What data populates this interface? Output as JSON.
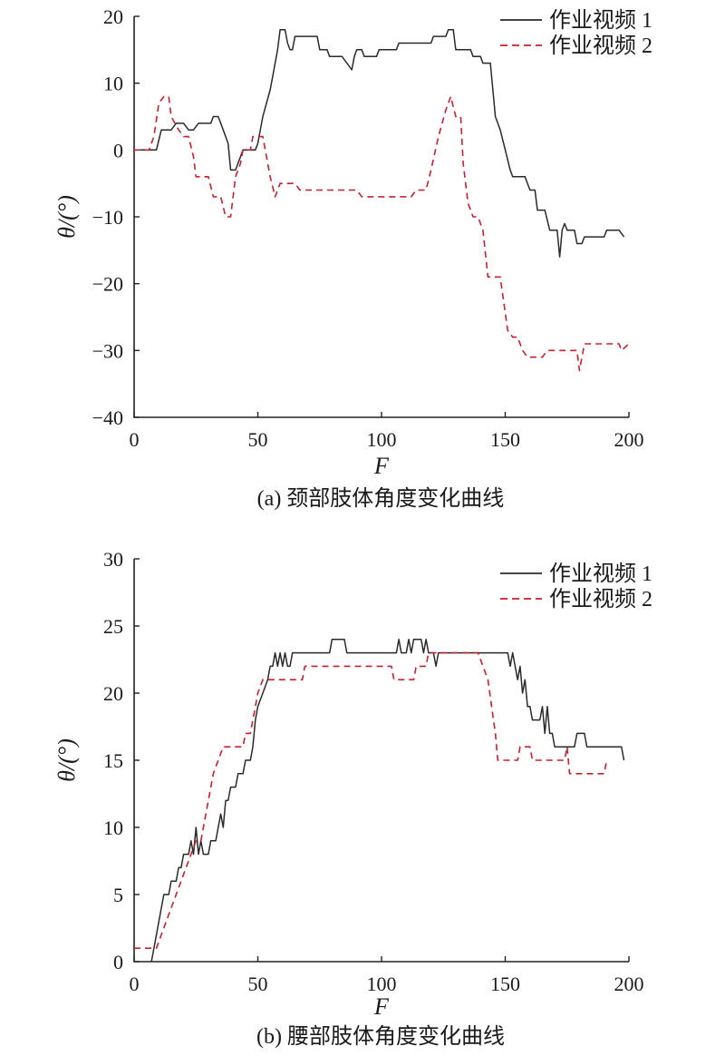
{
  "chart_data": [
    {
      "type": "line",
      "title": "",
      "caption": "(a) 颈部肢体角度变化曲线",
      "xlabel": "F",
      "ylabel": "θ/(°)",
      "xlim": [
        0,
        200
      ],
      "ylim": [
        -40,
        20
      ],
      "xticks": [
        "0",
        "50",
        "100",
        "150",
        "200"
      ],
      "yticks": [
        "20",
        "10",
        "0",
        "−10",
        "−20",
        "−30",
        "−40"
      ],
      "grid": false,
      "legend_position": "top-right",
      "series": [
        {
          "name": "作业视频 1",
          "color": "#2a2a2a",
          "dash": "solid",
          "points": [
            [
              0,
              0
            ],
            [
              9,
              0
            ],
            [
              11,
              3
            ],
            [
              15,
              3
            ],
            [
              17,
              4
            ],
            [
              20,
              4
            ],
            [
              22,
              3
            ],
            [
              24,
              3
            ],
            [
              26,
              4
            ],
            [
              31,
              4
            ],
            [
              32,
              5
            ],
            [
              34,
              5
            ],
            [
              36,
              3
            ],
            [
              38,
              1
            ],
            [
              39,
              -3
            ],
            [
              41,
              -3
            ],
            [
              43,
              -1
            ],
            [
              44,
              0
            ],
            [
              49,
              0
            ],
            [
              50,
              1
            ],
            [
              52,
              5
            ],
            [
              55,
              9
            ],
            [
              56,
              11
            ],
            [
              58,
              15
            ],
            [
              59,
              18
            ],
            [
              61,
              18
            ],
            [
              62,
              16
            ],
            [
              63,
              15
            ],
            [
              64,
              15
            ],
            [
              65,
              17
            ],
            [
              74,
              17
            ],
            [
              75,
              15
            ],
            [
              78,
              15
            ],
            [
              79,
              14
            ],
            [
              84,
              14
            ],
            [
              86,
              13
            ],
            [
              88,
              12
            ],
            [
              89,
              14
            ],
            [
              90,
              15
            ],
            [
              92,
              15
            ],
            [
              93,
              14
            ],
            [
              98,
              14
            ],
            [
              99,
              15
            ],
            [
              106,
              15
            ],
            [
              107,
              16
            ],
            [
              120,
              16
            ],
            [
              121,
              17
            ],
            [
              126,
              17
            ],
            [
              127,
              18
            ],
            [
              129,
              18
            ],
            [
              130,
              15
            ],
            [
              136,
              15
            ],
            [
              137,
              14
            ],
            [
              140,
              14
            ],
            [
              141,
              13
            ],
            [
              144,
              13
            ],
            [
              146,
              5
            ],
            [
              148,
              3
            ],
            [
              150,
              0
            ],
            [
              152,
              -3
            ],
            [
              153,
              -4
            ],
            [
              158,
              -4
            ],
            [
              160,
              -6
            ],
            [
              162,
              -6
            ],
            [
              163,
              -9
            ],
            [
              166,
              -9
            ],
            [
              168,
              -12
            ],
            [
              171,
              -12
            ],
            [
              172,
              -16
            ],
            [
              173,
              -12
            ],
            [
              174,
              -11
            ],
            [
              175,
              -12
            ],
            [
              178,
              -12
            ],
            [
              179,
              -14
            ],
            [
              181,
              -14
            ],
            [
              182,
              -13
            ],
            [
              190,
              -13
            ],
            [
              191,
              -12
            ],
            [
              196,
              -12
            ],
            [
              198,
              -13
            ]
          ]
        },
        {
          "name": "作业视频 2",
          "color": "#c8202e",
          "dash": "dashed",
          "points": [
            [
              0,
              0
            ],
            [
              6,
              0
            ],
            [
              8,
              2
            ],
            [
              10,
              7
            ],
            [
              12,
              8
            ],
            [
              14,
              8
            ],
            [
              15,
              5
            ],
            [
              18,
              3
            ],
            [
              20,
              2
            ],
            [
              22,
              2
            ],
            [
              24,
              -1
            ],
            [
              25,
              -4
            ],
            [
              30,
              -4
            ],
            [
              32,
              -7
            ],
            [
              35,
              -7
            ],
            [
              37,
              -10
            ],
            [
              39,
              -10
            ],
            [
              41,
              -4
            ],
            [
              43,
              -2
            ],
            [
              44,
              0
            ],
            [
              47,
              0
            ],
            [
              48,
              2
            ],
            [
              52,
              2
            ],
            [
              53,
              0
            ],
            [
              55,
              -4
            ],
            [
              57,
              -7
            ],
            [
              59,
              -5
            ],
            [
              65,
              -5
            ],
            [
              67,
              -6
            ],
            [
              90,
              -6
            ],
            [
              92,
              -7
            ],
            [
              112,
              -7
            ],
            [
              114,
              -6
            ],
            [
              118,
              -6
            ],
            [
              120,
              -3
            ],
            [
              123,
              2
            ],
            [
              126,
              6
            ],
            [
              128,
              8
            ],
            [
              130,
              5
            ],
            [
              132,
              5
            ],
            [
              133,
              -2
            ],
            [
              135,
              -8
            ],
            [
              137,
              -10
            ],
            [
              139,
              -10
            ],
            [
              141,
              -12
            ],
            [
              143,
              -19
            ],
            [
              148,
              -19
            ],
            [
              151,
              -27
            ],
            [
              153,
              -28
            ],
            [
              155,
              -28
            ],
            [
              157,
              -30
            ],
            [
              159,
              -31
            ],
            [
              165,
              -31
            ],
            [
              167,
              -30
            ],
            [
              179,
              -30
            ],
            [
              180,
              -33
            ],
            [
              182,
              -29
            ],
            [
              196,
              -29
            ],
            [
              197,
              -30
            ],
            [
              200,
              -29
            ]
          ]
        }
      ]
    },
    {
      "type": "line",
      "title": "",
      "caption": "(b) 腰部肢体角度变化曲线",
      "xlabel": "F",
      "ylabel": "θ/(°)",
      "xlim": [
        0,
        200
      ],
      "ylim": [
        0,
        30
      ],
      "xticks": [
        "0",
        "50",
        "100",
        "150",
        "200"
      ],
      "yticks": [
        "30",
        "25",
        "20",
        "15",
        "10",
        "5",
        "0"
      ],
      "grid": false,
      "legend_position": "top-right",
      "series": [
        {
          "name": "作业视频 1",
          "color": "#2a2a2a",
          "dash": "solid",
          "points": [
            [
              7,
              0
            ],
            [
              9,
              2
            ],
            [
              10,
              3
            ],
            [
              12,
              5
            ],
            [
              14,
              5
            ],
            [
              15,
              6
            ],
            [
              17,
              6
            ],
            [
              18,
              7
            ],
            [
              19,
              7
            ],
            [
              20,
              8
            ],
            [
              22,
              8
            ],
            [
              23,
              9
            ],
            [
              24,
              8
            ],
            [
              25,
              10
            ],
            [
              26,
              8
            ],
            [
              27,
              9
            ],
            [
              28,
              8
            ],
            [
              30,
              8
            ],
            [
              31,
              9
            ],
            [
              33,
              9
            ],
            [
              34,
              10
            ],
            [
              35,
              11
            ],
            [
              36,
              10
            ],
            [
              37,
              12
            ],
            [
              38,
              12
            ],
            [
              39,
              13
            ],
            [
              41,
              13
            ],
            [
              42,
              14
            ],
            [
              44,
              14
            ],
            [
              45,
              15
            ],
            [
              47,
              15
            ],
            [
              48,
              16
            ],
            [
              49,
              18
            ],
            [
              50,
              19
            ],
            [
              52,
              20
            ],
            [
              54,
              21
            ],
            [
              55,
              22
            ],
            [
              56,
              22
            ],
            [
              57,
              23
            ],
            [
              58,
              22
            ],
            [
              59,
              23
            ],
            [
              60,
              22
            ],
            [
              61,
              23
            ],
            [
              62,
              22
            ],
            [
              63,
              22
            ],
            [
              64,
              23
            ],
            [
              79,
              23
            ],
            [
              80,
              24
            ],
            [
              85,
              24
            ],
            [
              86,
              23
            ],
            [
              106,
              23
            ],
            [
              107,
              24
            ],
            [
              108,
              23
            ],
            [
              110,
              23
            ],
            [
              111,
              24
            ],
            [
              112,
              23
            ],
            [
              113,
              24
            ],
            [
              116,
              24
            ],
            [
              117,
              23
            ],
            [
              118,
              24
            ],
            [
              119,
              23
            ],
            [
              121,
              23
            ],
            [
              122,
              22
            ],
            [
              123,
              23
            ],
            [
              151,
              23
            ],
            [
              152,
              22
            ],
            [
              153,
              23
            ],
            [
              154,
              22
            ],
            [
              155,
              21
            ],
            [
              156,
              22
            ],
            [
              157,
              20
            ],
            [
              158,
              21
            ],
            [
              159,
              19
            ],
            [
              160,
              19
            ],
            [
              161,
              18
            ],
            [
              164,
              18
            ],
            [
              165,
              19
            ],
            [
              166,
              17
            ],
            [
              167,
              19
            ],
            [
              168,
              17
            ],
            [
              169,
              17
            ],
            [
              170,
              16
            ],
            [
              178,
              16
            ],
            [
              179,
              17
            ],
            [
              182,
              17
            ],
            [
              183,
              16
            ],
            [
              197,
              16
            ],
            [
              198,
              15
            ]
          ]
        },
        {
          "name": "作业视频 2",
          "color": "#c8202e",
          "dash": "dashed",
          "points": [
            [
              0,
              1
            ],
            [
              9,
              1
            ],
            [
              11,
              2
            ],
            [
              13,
              3
            ],
            [
              15,
              4
            ],
            [
              17,
              5
            ],
            [
              19,
              6
            ],
            [
              21,
              7
            ],
            [
              23,
              8
            ],
            [
              25,
              9
            ],
            [
              27,
              9
            ],
            [
              28,
              10
            ],
            [
              30,
              12
            ],
            [
              32,
              14
            ],
            [
              34,
              15
            ],
            [
              36,
              16
            ],
            [
              44,
              16
            ],
            [
              45,
              17
            ],
            [
              47,
              17
            ],
            [
              48,
              18
            ],
            [
              49,
              19
            ],
            [
              50,
              20
            ],
            [
              52,
              21
            ],
            [
              55,
              21
            ],
            [
              56,
              21
            ],
            [
              68,
              21
            ],
            [
              69,
              22
            ],
            [
              104,
              22
            ],
            [
              105,
              21
            ],
            [
              113,
              21
            ],
            [
              114,
              22
            ],
            [
              118,
              22
            ],
            [
              119,
              23
            ],
            [
              139,
              23
            ],
            [
              141,
              22
            ],
            [
              143,
              21
            ],
            [
              146,
              17
            ],
            [
              147,
              15
            ],
            [
              153,
              15
            ],
            [
              155,
              15
            ],
            [
              156,
              16
            ],
            [
              160,
              16
            ],
            [
              161,
              15
            ],
            [
              174,
              15
            ],
            [
              175,
              16
            ],
            [
              176,
              14
            ],
            [
              190,
              14
            ],
            [
              191,
              15
            ]
          ]
        }
      ]
    }
  ]
}
